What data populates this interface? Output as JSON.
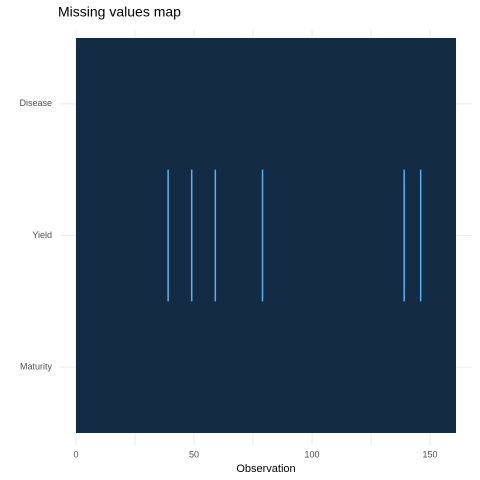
{
  "chart_data": {
    "type": "missmap",
    "title": "Missing values map",
    "x_label": "Observation",
    "categories": [
      "Disease",
      "Yield",
      "Maturity"
    ],
    "missing": [
      [],
      [
        39,
        49,
        59,
        79,
        139,
        146
      ],
      []
    ],
    "observed_color": "#132b43",
    "missing_color": "#56b1f7",
    "xlim": [
      0,
      161
    ],
    "xticks": [
      0,
      50,
      100,
      150
    ],
    "minor_xticks": [
      25,
      75,
      125
    ],
    "grid": true
  }
}
